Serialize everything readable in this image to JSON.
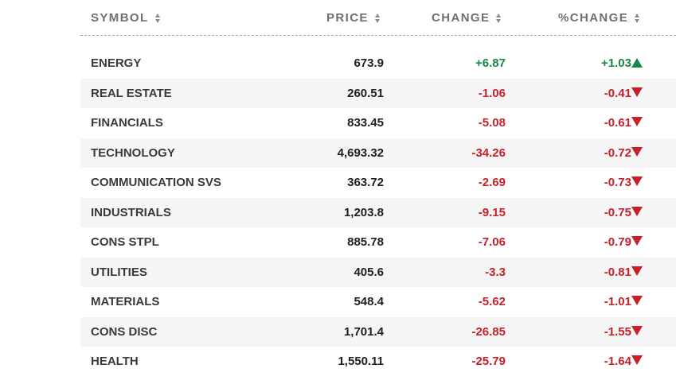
{
  "header": {
    "symbol": "SYMBOL",
    "price": "PRICE",
    "change": "CHANGE",
    "pct_change": "%CHANGE"
  },
  "rows": [
    {
      "symbol": "ENERGY",
      "price": "673.9",
      "change": "+6.87",
      "pct_change": "+1.03",
      "direction": "up"
    },
    {
      "symbol": "REAL ESTATE",
      "price": "260.51",
      "change": "-1.06",
      "pct_change": "-0.41",
      "direction": "down"
    },
    {
      "symbol": "FINANCIALS",
      "price": "833.45",
      "change": "-5.08",
      "pct_change": "-0.61",
      "direction": "down"
    },
    {
      "symbol": "TECHNOLOGY",
      "price": "4,693.32",
      "change": "-34.26",
      "pct_change": "-0.72",
      "direction": "down"
    },
    {
      "symbol": "COMMUNICATION SVS",
      "price": "363.72",
      "change": "-2.69",
      "pct_change": "-0.73",
      "direction": "down"
    },
    {
      "symbol": "INDUSTRIALS",
      "price": "1,203.8",
      "change": "-9.15",
      "pct_change": "-0.75",
      "direction": "down"
    },
    {
      "symbol": "CONS STPL",
      "price": "885.78",
      "change": "-7.06",
      "pct_change": "-0.79",
      "direction": "down"
    },
    {
      "symbol": "UTILITIES",
      "price": "405.6",
      "change": "-3.3",
      "pct_change": "-0.81",
      "direction": "down"
    },
    {
      "symbol": "MATERIALS",
      "price": "548.4",
      "change": "-5.62",
      "pct_change": "-1.01",
      "direction": "down"
    },
    {
      "symbol": "CONS DISC",
      "price": "1,701.4",
      "change": "-26.85",
      "pct_change": "-1.55",
      "direction": "down"
    },
    {
      "symbol": "HEALTH",
      "price": "1,550.11",
      "change": "-25.79",
      "pct_change": "-1.64",
      "direction": "down"
    }
  ],
  "colors": {
    "positive": "#17874a",
    "negative": "#c8202a",
    "row_alt_bg": "#f5f5f5",
    "header_text": "#6f6f6f"
  },
  "icons": {
    "sort": "sort-arrows-icon",
    "up": "triangle-up-icon",
    "down": "triangle-down-icon"
  }
}
